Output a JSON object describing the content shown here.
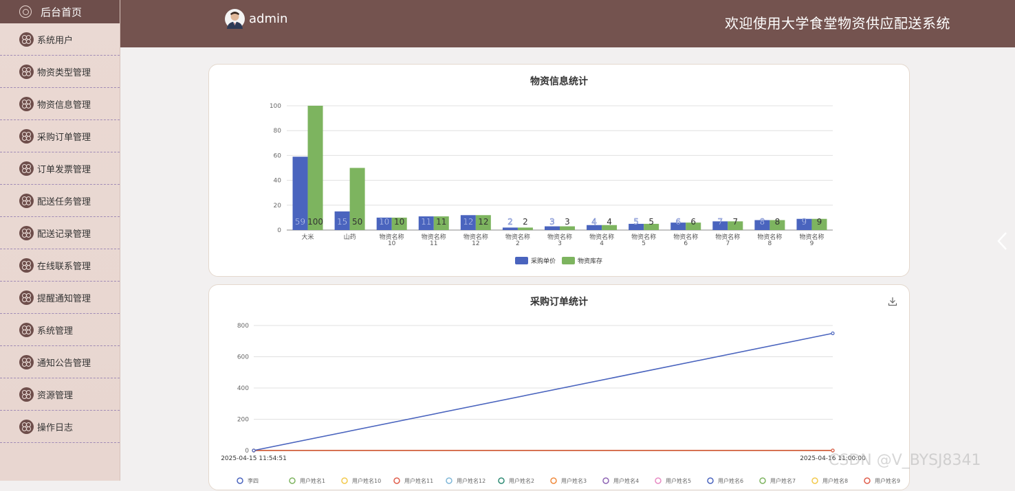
{
  "sidebar": {
    "home_label": "后台首页",
    "items": [
      {
        "label": "系统用户"
      },
      {
        "label": "物资类型管理"
      },
      {
        "label": "物资信息管理"
      },
      {
        "label": "采购订单管理"
      },
      {
        "label": "订单发票管理"
      },
      {
        "label": "配送任务管理"
      },
      {
        "label": "配送记录管理"
      },
      {
        "label": "在线联系管理"
      },
      {
        "label": "提醒通知管理"
      },
      {
        "label": "系统管理"
      },
      {
        "label": "通知公告管理"
      },
      {
        "label": "资源管理"
      },
      {
        "label": "操作日志"
      }
    ]
  },
  "header": {
    "username": "admin",
    "site_title": "欢迎使用大学食堂物资供应配送系统",
    "bg_color": "#74534f"
  },
  "chart_data": [
    {
      "type": "bar",
      "title": "物资信息统计",
      "categories": [
        "大米",
        "山药",
        "物资名称\n10",
        "物资名称\n11",
        "物资名称\n12",
        "物资名称\n2",
        "物资名称\n3",
        "物资名称\n4",
        "物资名称\n5",
        "物资名称\n6",
        "物资名称\n7",
        "物资名称\n8",
        "物资名称\n9"
      ],
      "series": [
        {
          "name": "采购单价",
          "color": "#4a64be",
          "values": [
            59,
            15,
            10,
            11,
            12,
            2,
            3,
            4,
            5,
            6,
            7,
            8,
            9
          ]
        },
        {
          "name": "物资库存",
          "color": "#7db45f",
          "values": [
            100,
            50,
            10,
            11,
            12,
            2,
            3,
            4,
            5,
            6,
            7,
            8,
            9
          ]
        }
      ],
      "ylim": [
        0,
        100
      ],
      "yticks": [
        0,
        20,
        40,
        60,
        80,
        100
      ],
      "grid": true,
      "legend": "bottom-center"
    },
    {
      "type": "line",
      "title": "采购订单统计",
      "x": [
        "2025-04-15 11:54:51",
        "2025-04-16 11:00:00"
      ],
      "ylim": [
        0,
        800
      ],
      "yticks": [
        0,
        200,
        400,
        600,
        800
      ],
      "series": [
        {
          "name": "李四",
          "color": "#4a64be",
          "values": [
            0,
            750
          ]
        },
        {
          "name": "用户姓名1",
          "color": "#7db45f",
          "values": [
            0,
            0
          ]
        },
        {
          "name": "用户姓名10",
          "color": "#f2c94c",
          "values": [
            0,
            0
          ]
        },
        {
          "name": "用户姓名11",
          "color": "#e05d4b",
          "values": [
            0,
            0
          ]
        },
        {
          "name": "用户姓名12",
          "color": "#7fb7d8",
          "values": [
            0,
            0
          ]
        },
        {
          "name": "用户姓名2",
          "color": "#2e8b74",
          "values": [
            0,
            0
          ]
        },
        {
          "name": "用户姓名3",
          "color": "#f08a3c",
          "values": [
            0,
            0
          ]
        },
        {
          "name": "用户姓名4",
          "color": "#8e63b4",
          "values": [
            0,
            0
          ]
        },
        {
          "name": "用户姓名5",
          "color": "#e78ac3",
          "values": [
            0,
            0
          ]
        },
        {
          "name": "用户姓名6",
          "color": "#4a64be",
          "values": [
            0,
            0
          ]
        },
        {
          "name": "用户姓名7",
          "color": "#7db45f",
          "values": [
            0,
            0
          ]
        },
        {
          "name": "用户姓名8",
          "color": "#f2c94c",
          "values": [
            0,
            0
          ]
        },
        {
          "name": "用户姓名9",
          "color": "#e05d4b",
          "values": [
            0,
            0
          ]
        }
      ],
      "grid": true,
      "legend": "bottom-center"
    }
  ],
  "watermark": "CSDN @V_BYSJ8341"
}
